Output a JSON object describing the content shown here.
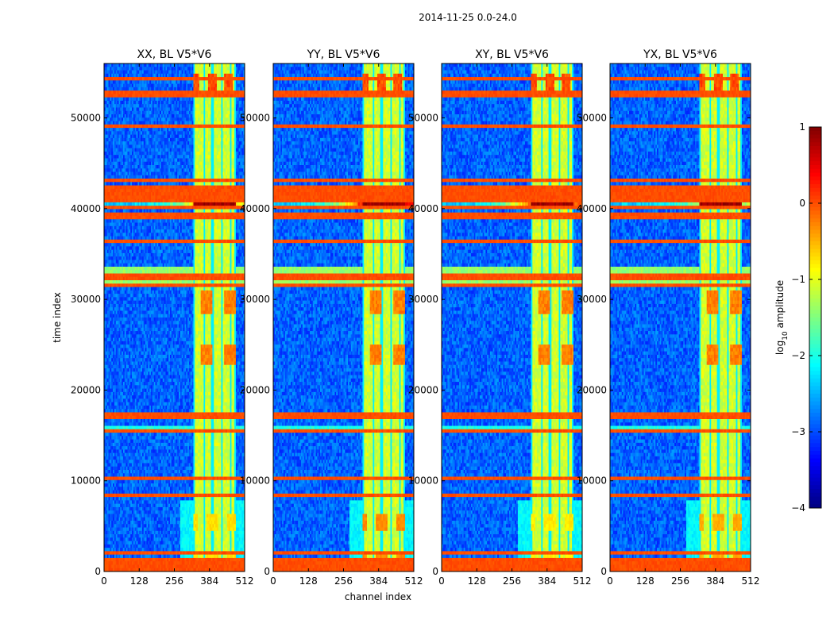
{
  "chart_data": {
    "type": "heatmap",
    "suptitle": "2014-11-25 0.0-24.0",
    "xlabel": "channel index",
    "ylabel": "time index",
    "xlim": [
      0,
      512
    ],
    "ylim": [
      0,
      56000
    ],
    "xticks": [
      0,
      128,
      256,
      384,
      512
    ],
    "yticks": [
      0,
      10000,
      20000,
      30000,
      40000,
      50000
    ],
    "panels": [
      {
        "title": "XX, BL V5*V6",
        "pol": "XX",
        "edge_leak": 0.55,
        "low_blob": 0.4
      },
      {
        "title": "YY, BL V5*V6",
        "pol": "YY",
        "edge_leak": 1.0,
        "low_blob": 1.0
      },
      {
        "title": "XY, BL V5*V6",
        "pol": "XY",
        "edge_leak": 0.85,
        "low_blob": 0.3
      },
      {
        "title": "YX, BL V5*V6",
        "pol": "YX",
        "edge_leak": 0.4,
        "low_blob": 0.75
      }
    ],
    "colorbar": {
      "label": "log10 amplitude",
      "label_main": "log",
      "label_sub": "10",
      "label_rest": " amplitude",
      "range": [
        -4,
        1
      ],
      "ticks": [
        "1",
        "0",
        "−1",
        "−2",
        "−3",
        "−4"
      ],
      "colormap": "jet"
    },
    "rfi_channel_band": [
      325,
      480
    ],
    "rfi_subband_edges": [
      325,
      365,
      395,
      430,
      460,
      480
    ],
    "horizontal_flag_rows": [
      200,
      600,
      900,
      1300,
      1900,
      2100,
      8500,
      9300,
      10300,
      15500,
      17100,
      17300,
      31600,
      32400,
      32800,
      35800,
      36500,
      39000,
      39300,
      39600,
      40200,
      40800,
      41200,
      41600,
      42000,
      42400,
      43000,
      43300,
      49000,
      49300,
      52400,
      52800,
      54300
    ]
  }
}
